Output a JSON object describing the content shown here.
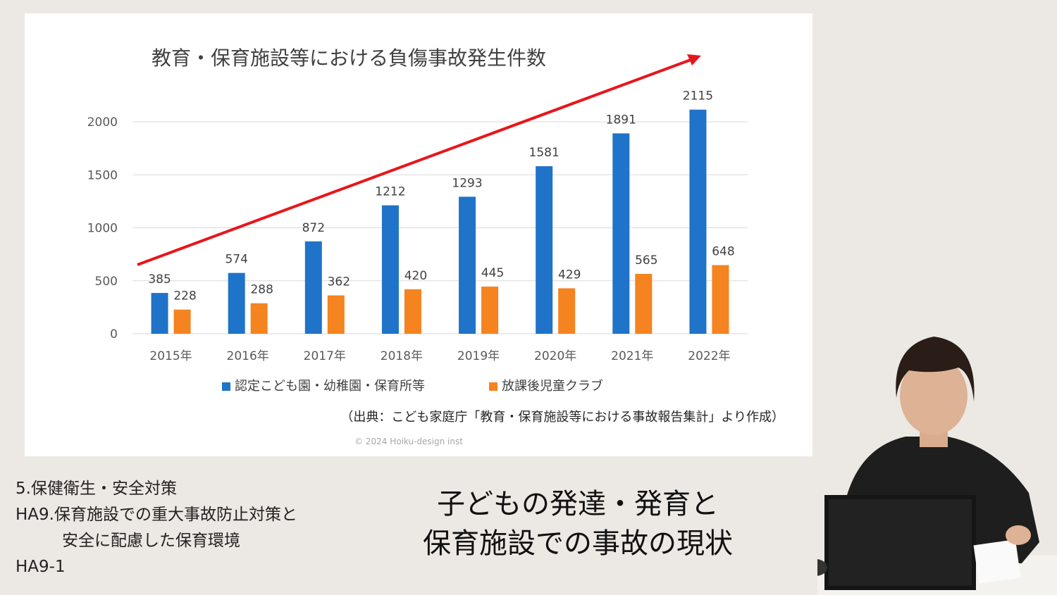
{
  "colors": {
    "series1": "#1f73c8",
    "series2": "#f5831f",
    "trend_arrow": "#e8161b",
    "background": "#ece8e3",
    "gridline": "#d9d9d9"
  },
  "chart_data": {
    "type": "bar",
    "title": "教育・保育施設等における負傷事故発生件数",
    "categories": [
      "2015年",
      "2016年",
      "2017年",
      "2018年",
      "2019年",
      "2020年",
      "2021年",
      "2022年"
    ],
    "series": [
      {
        "name": "認定こども園・幼稚園・保育所等",
        "values": [
          385,
          574,
          872,
          1212,
          1293,
          1581,
          1891,
          2115
        ]
      },
      {
        "name": "放課後児童クラブ",
        "values": [
          228,
          288,
          362,
          420,
          445,
          429,
          565,
          648
        ]
      }
    ],
    "ylim": [
      0,
      2000
    ],
    "yticks": [
      0,
      500,
      1000,
      1500,
      2000
    ],
    "xlabel": "",
    "ylabel": "",
    "grid": true,
    "legend": "bottom",
    "annotation": "trend arrow (upward)"
  },
  "source_note": "（出典：こども家庭庁「教育・保育施設等における事故報告集計」より作成）",
  "copyright": "© 2024 Hoiku-design inst",
  "course": {
    "section": "5.保健衛生・安全対策",
    "module_line1": "HA9.保育施設での重大事故防止対策と",
    "module_line2": "安全に配慮した保育環境",
    "lesson_code": "HA9-1"
  },
  "lesson_title": {
    "line1": "子どもの発達・発育と",
    "line2": "保育施設での事故の現状"
  }
}
